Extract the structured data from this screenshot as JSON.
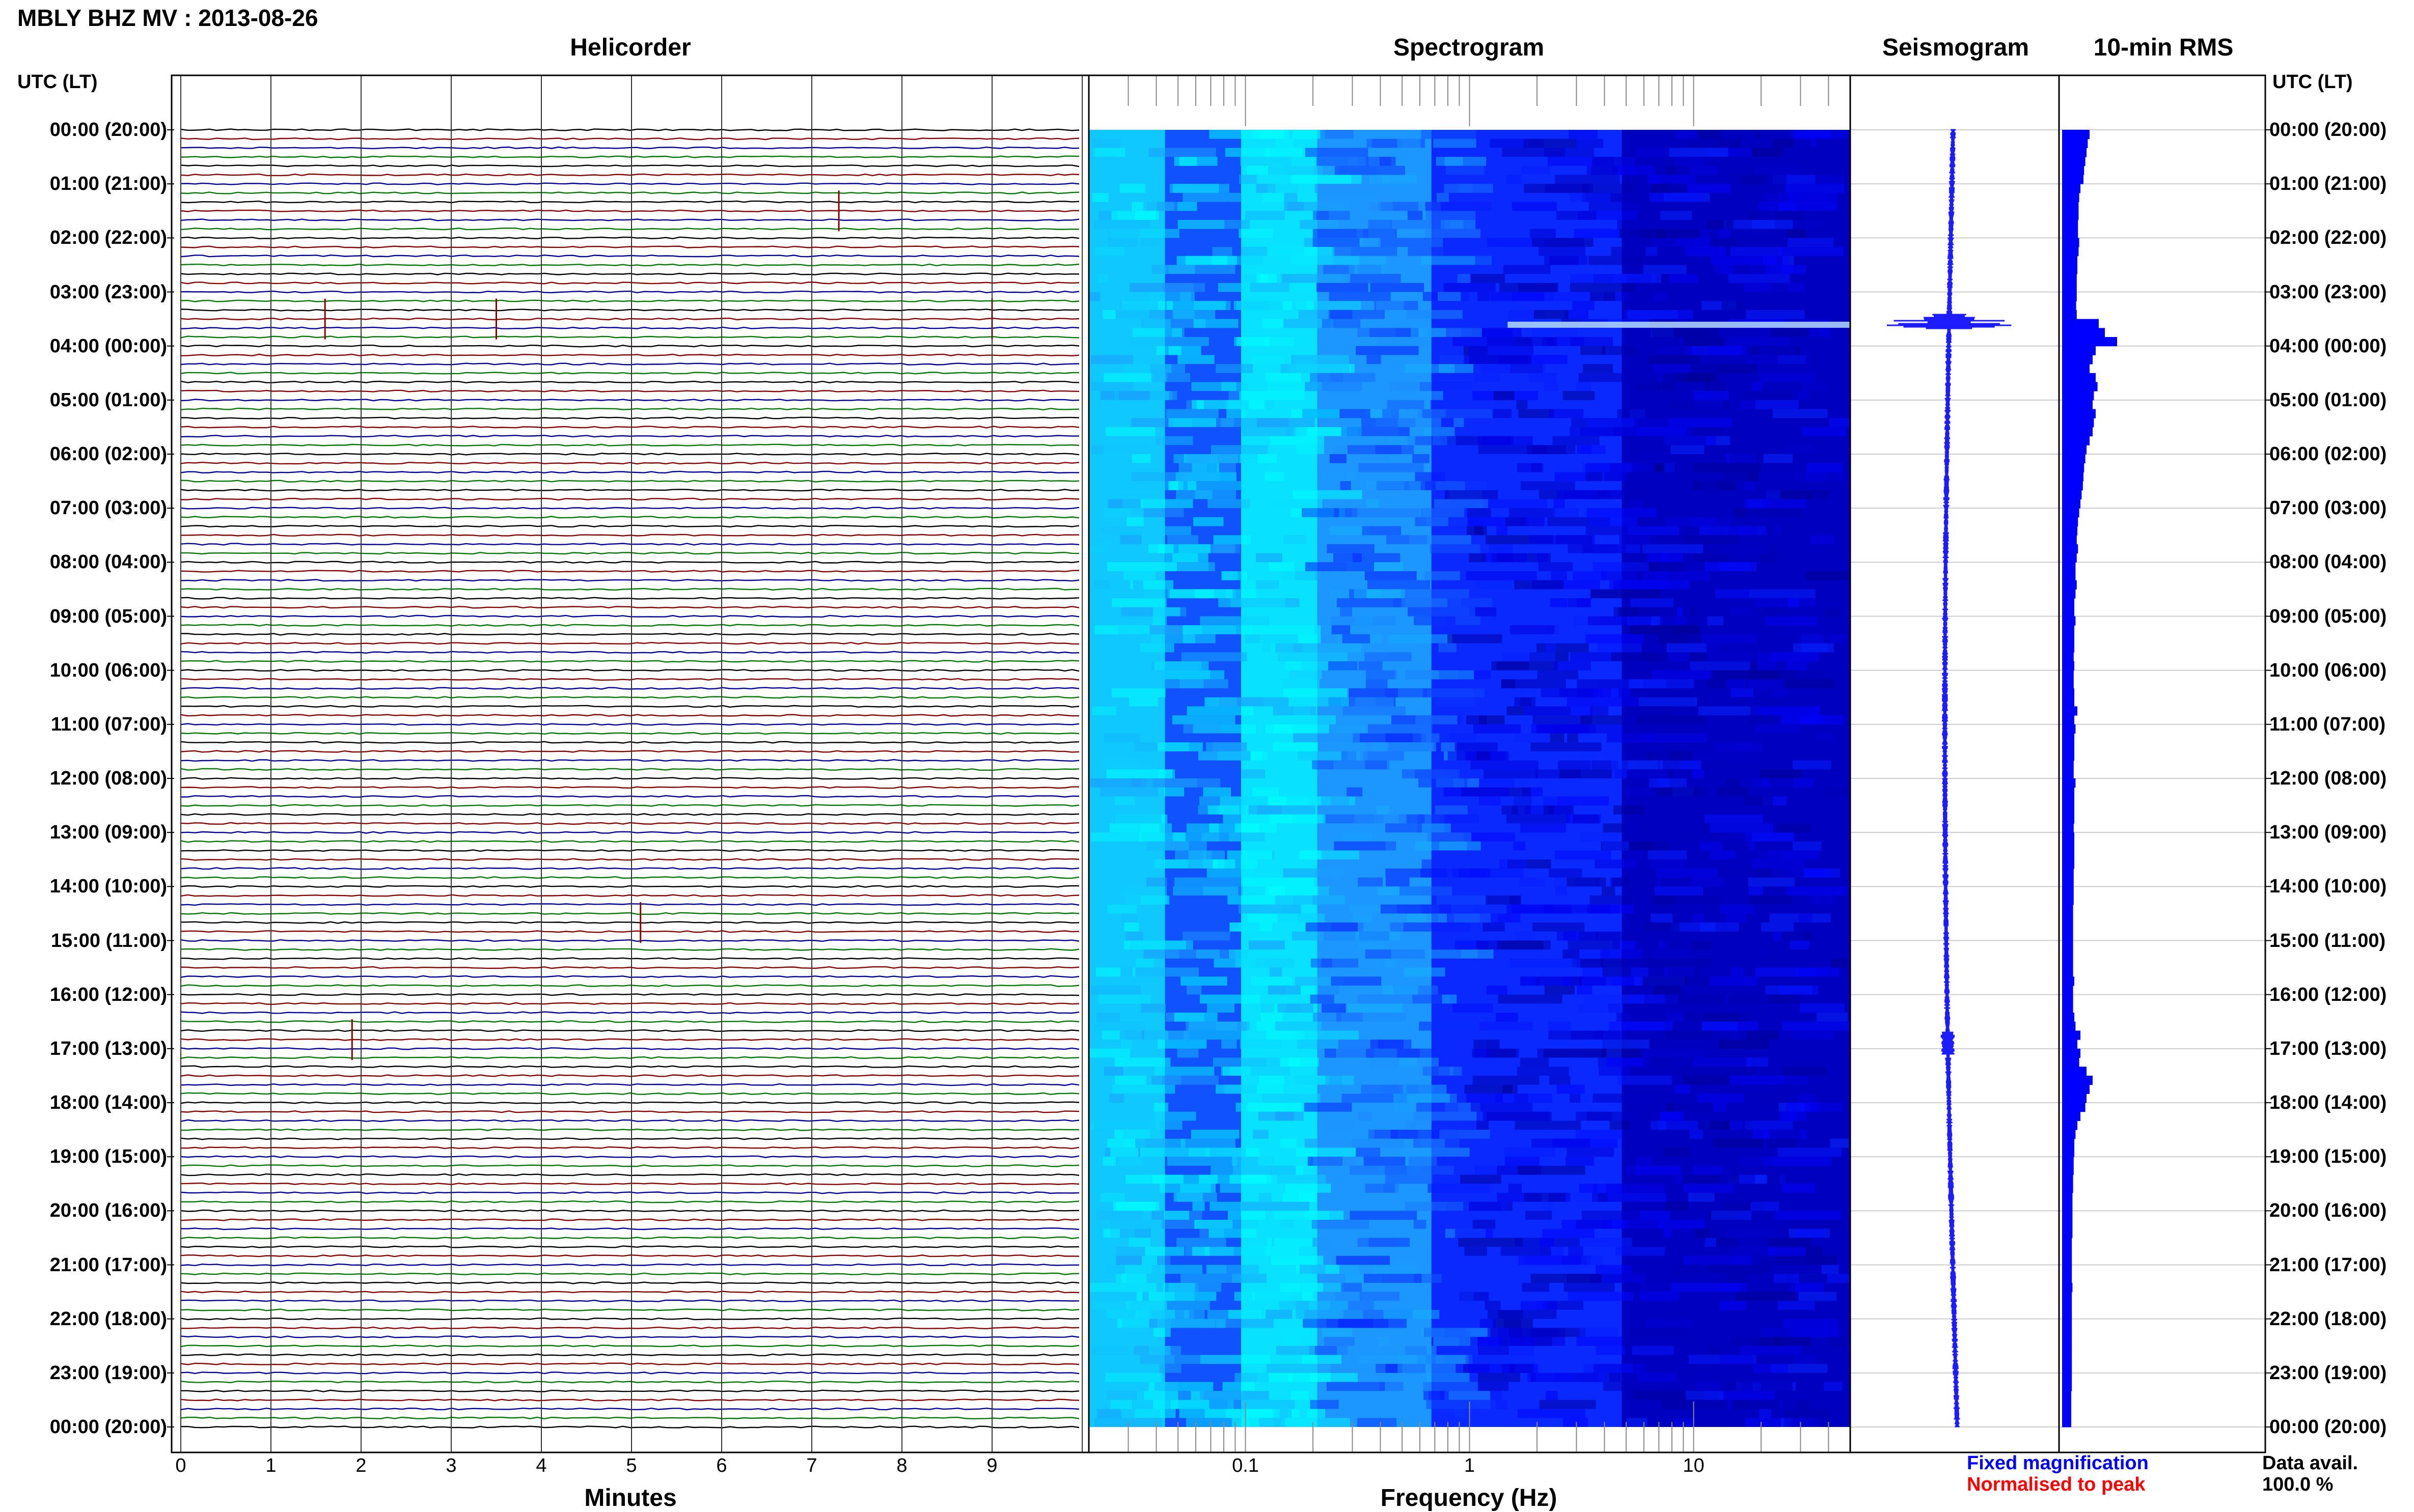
{
  "title": "MBLY BHZ MV : 2013-08-26",
  "panels": {
    "helicorder": "Helicorder",
    "spectrogram": "Spectrogram",
    "seismogram": "Seismogram",
    "rms": "10-min RMS"
  },
  "axis_header_left": "UTC (LT)",
  "axis_header_right": "UTC (LT)",
  "time_labels": [
    "00:00 (20:00)",
    "01:00 (21:00)",
    "02:00 (22:00)",
    "03:00 (23:00)",
    "04:00 (00:00)",
    "05:00 (01:00)",
    "06:00 (02:00)",
    "07:00 (03:00)",
    "08:00 (04:00)",
    "09:00 (05:00)",
    "10:00 (06:00)",
    "11:00 (07:00)",
    "12:00 (08:00)",
    "13:00 (09:00)",
    "14:00 (10:00)",
    "15:00 (11:00)",
    "16:00 (12:00)",
    "17:00 (13:00)",
    "18:00 (14:00)",
    "19:00 (15:00)",
    "20:00 (16:00)",
    "21:00 (17:00)",
    "22:00 (18:00)",
    "23:00 (19:00)",
    "00:00 (20:00)"
  ],
  "helicorder_ticks": [
    "0",
    "1",
    "2",
    "3",
    "4",
    "5",
    "6",
    "7",
    "8",
    "9"
  ],
  "helicorder_xlabel": "Minutes",
  "spectrogram_ticks": [
    "0.1",
    "1",
    "10"
  ],
  "spectrogram_xlabel": "Frequency (Hz)",
  "legend": {
    "fixed": "Fixed magnification",
    "fixed_color": "#0000ff",
    "normalised": "Normalised to peak",
    "normalised_color": "#ff0000"
  },
  "data_avail_label": "Data avail.",
  "data_avail_value": "100.0 %",
  "trace_colors": [
    "#000000",
    "#8b0000",
    "#0000a0",
    "#007a00"
  ],
  "spectrogram_colors": [
    "#000080",
    "#0000ff",
    "#1e90ff",
    "#00ffff"
  ],
  "chart_data": [
    {
      "type": "line",
      "title": "Helicorder",
      "xlabel": "Minutes",
      "x_range": [
        0,
        10
      ],
      "lines_per_hour": 6,
      "hours": 24,
      "events": [
        {
          "time_utc": "03:30",
          "minute": 1.6
        },
        {
          "time_utc": "03:30",
          "minute": 3.5
        },
        {
          "time_utc": "03:30",
          "minute": 9.0
        },
        {
          "time_utc": "01:30",
          "minute": 7.3
        },
        {
          "time_utc": "14:40",
          "minute": 5.1
        },
        {
          "time_utc": "16:50",
          "minute": 1.9
        }
      ]
    },
    {
      "type": "heatmap",
      "title": "Spectrogram",
      "xlabel": "Frequency (Hz)",
      "x_scale": "log",
      "x_range": [
        0.02,
        50
      ],
      "y_range_utc_hours": [
        0,
        24
      ]
    },
    {
      "type": "line",
      "title": "Seismogram",
      "y_range_utc_hours": [
        0,
        24
      ]
    },
    {
      "type": "bar",
      "title": "10-min RMS",
      "bins_per_hour": 6,
      "relative_values": [
        0.45,
        0.42,
        0.4,
        0.38,
        0.36,
        0.35,
        0.3,
        0.28,
        0.27,
        0.27,
        0.26,
        0.26,
        0.28,
        0.27,
        0.25,
        0.25,
        0.24,
        0.24,
        0.24,
        0.23,
        0.24,
        0.6,
        0.7,
        0.9,
        0.55,
        0.5,
        0.45,
        0.55,
        0.58,
        0.52,
        0.5,
        0.55,
        0.52,
        0.5,
        0.45,
        0.4,
        0.38,
        0.36,
        0.35,
        0.34,
        0.32,
        0.3,
        0.28,
        0.26,
        0.25,
        0.24,
        0.26,
        0.24,
        0.22,
        0.22,
        0.24,
        0.22,
        0.2,
        0.2,
        0.22,
        0.2,
        0.2,
        0.2,
        0.19,
        0.2,
        0.19,
        0.19,
        0.2,
        0.2,
        0.25,
        0.2,
        0.22,
        0.2,
        0.2,
        0.2,
        0.19,
        0.19,
        0.22,
        0.2,
        0.2,
        0.2,
        0.2,
        0.19,
        0.2,
        0.2,
        0.2,
        0.2,
        0.19,
        0.19,
        0.19,
        0.19,
        0.18,
        0.18,
        0.18,
        0.18,
        0.18,
        0.18,
        0.18,
        0.18,
        0.2,
        0.18,
        0.18,
        0.18,
        0.2,
        0.22,
        0.3,
        0.25,
        0.3,
        0.28,
        0.4,
        0.5,
        0.45,
        0.4,
        0.38,
        0.3,
        0.25,
        0.22,
        0.2,
        0.2,
        0.19,
        0.19,
        0.18,
        0.18,
        0.17,
        0.17,
        0.17,
        0.17,
        0.17,
        0.16,
        0.16,
        0.16,
        0.16,
        0.16,
        0.17,
        0.16,
        0.16,
        0.16,
        0.16,
        0.16,
        0.16,
        0.16,
        0.16,
        0.16,
        0.16,
        0.16,
        0.15,
        0.15,
        0.15,
        0.15
      ]
    }
  ]
}
